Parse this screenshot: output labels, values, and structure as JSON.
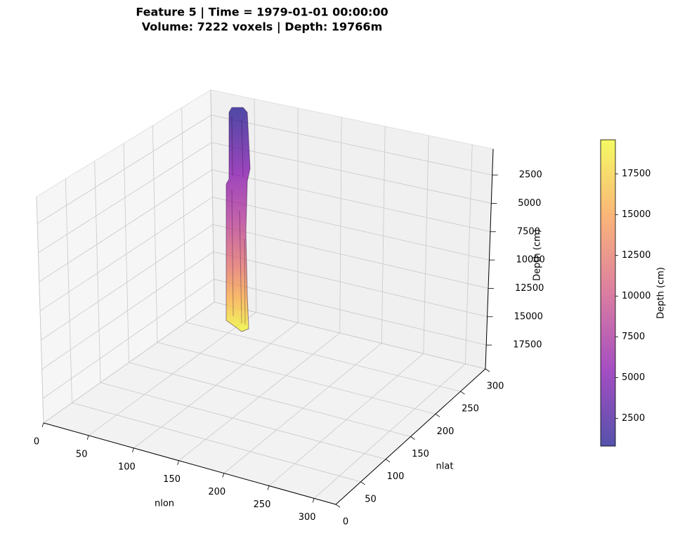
{
  "chart_data": {
    "type": "surface3d",
    "title": "Feature 5 | Time = 1979-01-01 00:00:00",
    "subtitle": "Volume: 7222 voxels | Depth: 19766m",
    "x_label": "nlon",
    "y_label": "nlat",
    "z_label": "Depth (cm)",
    "xlim": [
      0,
      324
    ],
    "xticks": [
      0,
      50,
      100,
      150,
      200,
      250,
      300
    ],
    "ylim": [
      0,
      300
    ],
    "yticks": [
      0,
      50,
      100,
      150,
      200,
      250,
      300
    ],
    "zlim": [
      200,
      19600
    ],
    "zticks": [
      2500,
      5000,
      7500,
      10000,
      12500,
      15000,
      17500
    ],
    "z_inverted": true,
    "grid": true,
    "colorbar": {
      "label": "Depth (cm)",
      "colormap": "plasma",
      "lim": [
        800,
        19600
      ],
      "ticks": [
        2500,
        5000,
        7500,
        10000,
        12500,
        15000,
        17500
      ]
    }
  }
}
